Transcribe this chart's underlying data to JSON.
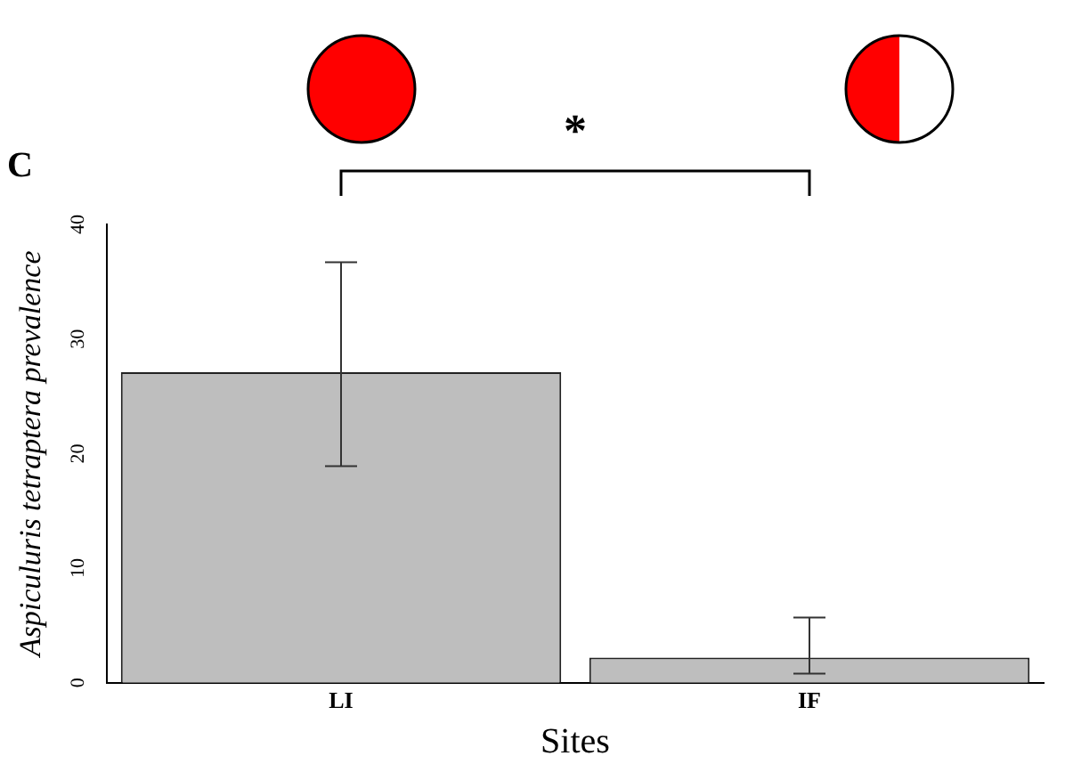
{
  "chart_data": {
    "type": "bar",
    "title": "C",
    "xlabel": "Sites",
    "ylabel": "Aspiculuris tetraptera prevalence",
    "categories": [
      "LI",
      "IF"
    ],
    "values": [
      27.1,
      2.2
    ],
    "errors": [
      [
        18.9,
        36.7
      ],
      [
        0.8,
        5.7
      ]
    ],
    "color": "#bebebe",
    "ylim": [
      0,
      40
    ],
    "yticks": [
      0,
      10,
      20,
      30,
      40
    ],
    "grid": false,
    "legend": false,
    "annotations": [
      "*"
    ]
  }
}
